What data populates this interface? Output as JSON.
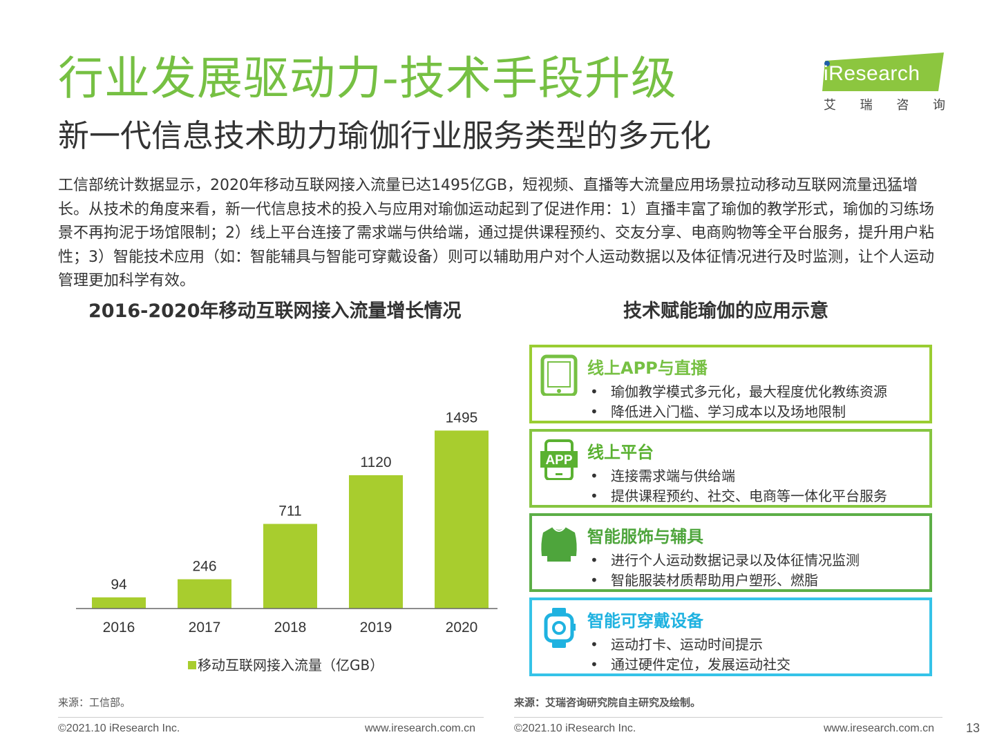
{
  "header": {
    "title": "行业发展驱动力-技术手段升级",
    "subtitle": "新一代信息技术助力瑜伽行业服务类型的多元化"
  },
  "logo": {
    "wordmark": "iResearch",
    "cn_chars": [
      "艾",
      "瑞",
      "咨",
      "询"
    ]
  },
  "paragraph": "工信部统计数据显示，2020年移动互联网接入流量已达1495亿GB，短视频、直播等大流量应用场景拉动移动互联网流量迅猛增长。从技术的角度来看，新一代信息技术的投入与应用对瑜伽运动起到了促进作用：1）直播丰富了瑜伽的教学形式，瑜伽的习练场景不再拘泥于场馆限制；2）线上平台连接了需求端与供给端，通过提供课程预约、交友分享、电商购物等全平台服务，提升用户粘性；3）智能技术应用（如：智能辅具与智能可穿戴设备）则可以辅助用户对个人运动数据以及体征情况进行及时监测，让个人运动管理更加科学有效。",
  "chart_title": "2016-2020年移动互联网接入流量增长情况",
  "chart_data": {
    "type": "bar",
    "title": "2016-2020年移动互联网接入流量增长情况",
    "categories": [
      "2016",
      "2017",
      "2018",
      "2019",
      "2020"
    ],
    "series": [
      {
        "name": "移动互联网接入流量（亿GB）",
        "values": [
          94,
          246,
          711,
          1120,
          1495
        ],
        "color": "#a8cd2e"
      }
    ],
    "ylim": [
      0,
      1700
    ],
    "grid": false,
    "legend": "bottom",
    "data_labels": true
  },
  "app_title": "技术赋能瑜伽的应用示意",
  "cards": [
    {
      "icon": "tablet-icon",
      "title": "线上APP与直播",
      "bullets": [
        "瑜伽教学模式多元化，最大程度优化教练资源",
        "降低进入门槛、学习成本以及场地限制"
      ],
      "color": "#9acd32",
      "title_color": "#76c043"
    },
    {
      "icon": "app-phone-icon",
      "icon_text": "APP",
      "title": "线上平台",
      "bullets": [
        "连接需求端与供给端",
        "提供课程预约、社交、电商等一体化平台服务"
      ],
      "color": "#86c540",
      "title_color": "#5ab131"
    },
    {
      "icon": "shirt-icon",
      "title": "智能服饰与辅具",
      "bullets": [
        "进行个人运动数据记录以及体征情况监测",
        "智能服装材质帮助用户塑形、燃脂"
      ],
      "color": "#5cae47",
      "title_color": "#4ea53c"
    },
    {
      "icon": "smartwatch-icon",
      "title": "智能可穿戴设备",
      "bullets": [
        "运动打卡、运动时间提示",
        "通过硬件定位，发展运动社交"
      ],
      "color": "#35c3e8",
      "title_color": "#1fb2e0"
    }
  ],
  "source_left": "来源：工信部。",
  "source_right": "来源：艾瑞咨询研究院自主研究及绘制。",
  "footer": {
    "copyright_left": "©2021.10 iResearch Inc.",
    "url_left": "www.iresearch.com.cn",
    "copyright_right": "©2021.10 iResearch Inc.",
    "url_right": "www.iresearch.com.cn",
    "page_number": "13"
  }
}
